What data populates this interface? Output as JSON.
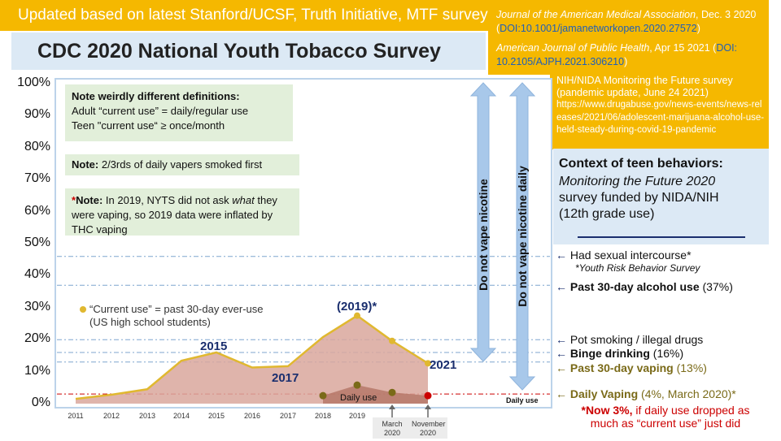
{
  "banner": "Updated based on latest Stanford/UCSF, Truth Initiative, MTF surveys:",
  "title": "CDC 2020 National Youth Tobacco Survey",
  "refs": [
    {
      "journal": "Journal of the American Medical Association",
      "date": ", Dec. 3 2020 (",
      "doi": "DOI:10.1001/jamanetworkopen.2020.27572",
      "end": ")"
    },
    {
      "journal": "American Journal of Public Health",
      "date": ", Apr 15 2021 (",
      "doi": "DOI: 10.2105/AJPH.2021.306210",
      "end": ")"
    }
  ],
  "mtf_ref": {
    "text": "NIH/NIDA Monitoring the Future survey (pandemic update, June 24 2021)",
    "url": "https://www.drugabuse.gov/news-events/news-releases/2021/06/adolescent-marijuana-alcohol-use-held-steady-during-covid-19-pandemic"
  },
  "notes": {
    "defs_title": "Note weirdly different definitions:",
    "defs_adult": "Adult “current use” = daily/regular use",
    "defs_teen": "Teen \"current use“  ≥ once/month",
    "daily_vapers": "2/3rds of daily vapers smoked first",
    "daily_vapers_label": "Note:",
    "nyts_star": "*",
    "nyts_label": "Note:",
    "nyts_pre": "  In 2019, NYTS did not ask ",
    "nyts_em": "what",
    "nyts_post": " they were vaping, so 2019 data were inflated by THC vaping"
  },
  "context": {
    "head": "Context of teen behaviors:",
    "line1": "Monitoring the Future 2020",
    "line2": "survey funded by NIDA/NIH",
    "line3": "(12th grade use)"
  },
  "vertical_labels": {
    "nicotine": "Do not vape nicotine",
    "nicotine_daily": "Do not vape nicotine daily"
  },
  "behaviors": {
    "sex": "Had sexual intercourse*",
    "sex_sub": "*Youth Risk Behavior Survey",
    "alcohol_bold": "Past 30-day alcohol use",
    "alcohol_rest": " (37%)",
    "pot": "Pot smoking / illegal drugs",
    "binge_bold": "Binge drinking",
    "binge_rest": " (16%)",
    "vaping30_bold": "Past 30-day vaping",
    "vaping30_rest": " (13%)",
    "daily_bold": "Daily Vaping",
    "daily_rest": " (4%, March 2020)*",
    "now_bold": "*Now 3%,",
    "now_rest": " if daily use dropped as much as “current use” just did"
  },
  "colors": {
    "gold": "#f5b800",
    "line": "#e0b830",
    "area": "#d9a79c",
    "daily_area": "#b07060",
    "daily_dot": "#7a6a18",
    "red": "#cc0000",
    "navy": "#1a2e6e",
    "arrow": "#a8c8ea"
  },
  "chart_data": {
    "type": "area",
    "ylim": [
      0,
      100
    ],
    "yticks": [
      "0%",
      "10%",
      "20%",
      "30%",
      "40%",
      "50%",
      "60%",
      "70%",
      "80%",
      "90%",
      "100%"
    ],
    "categories": [
      "2011",
      "2012",
      "2013",
      "2014",
      "2015",
      "2016",
      "2017",
      "2018",
      "2019",
      "March 2020",
      "November 2020"
    ],
    "series": [
      {
        "name": "“Current use” = past 30-day ever-use",
        "values": [
          1.5,
          2.8,
          4.5,
          13.4,
          16.0,
          11.3,
          11.7,
          20.8,
          27.5,
          19.6,
          12.6
        ]
      },
      {
        "name": "Daily use",
        "x": [
          "2018",
          "2019",
          "March 2020",
          "November 2020"
        ],
        "values": [
          2.5,
          5.8,
          3.5,
          2.5
        ]
      }
    ],
    "legend": "“Current use” = past 30-day ever-use",
    "legend_sub": "(US high school students)",
    "annotations": {
      "y2015": "2015",
      "y2017": "2017",
      "y2019": "(2019)*",
      "y2021": "2021",
      "daily_use": "Daily use",
      "daily_use_right": "Daily use"
    },
    "reference_lines": [
      46,
      37,
      20,
      16,
      13,
      3
    ]
  }
}
